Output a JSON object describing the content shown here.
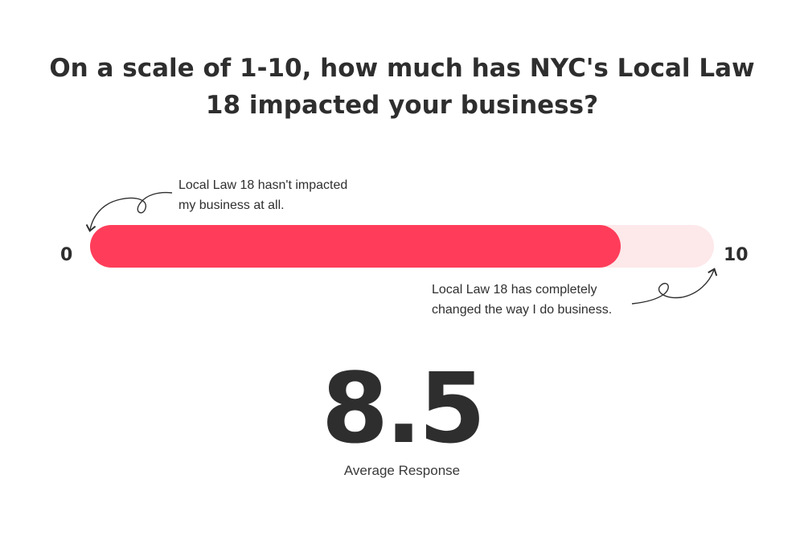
{
  "title": "On a scale of 1-10, how much has NYC's Local Law 18 impacted your business?",
  "chart_data": {
    "type": "bar",
    "title": "On a scale of 1-10, how much has NYC's Local Law 18 impacted your business?",
    "categories": [
      "Average Response"
    ],
    "values": [
      8.5
    ],
    "xlim": [
      0,
      10
    ],
    "scale_min_label": "0",
    "scale_max_label": "10",
    "annotations": {
      "low": "Local Law 18 hasn't impacted\nmy business at all.",
      "high": "Local Law 18 has completely\nchanged the way I do business."
    },
    "value_label": "8.5",
    "value_caption": "Average Response"
  },
  "colors": {
    "fill": "#ff3d5a",
    "track": "#fde8ea",
    "text": "#2e2e2e"
  }
}
